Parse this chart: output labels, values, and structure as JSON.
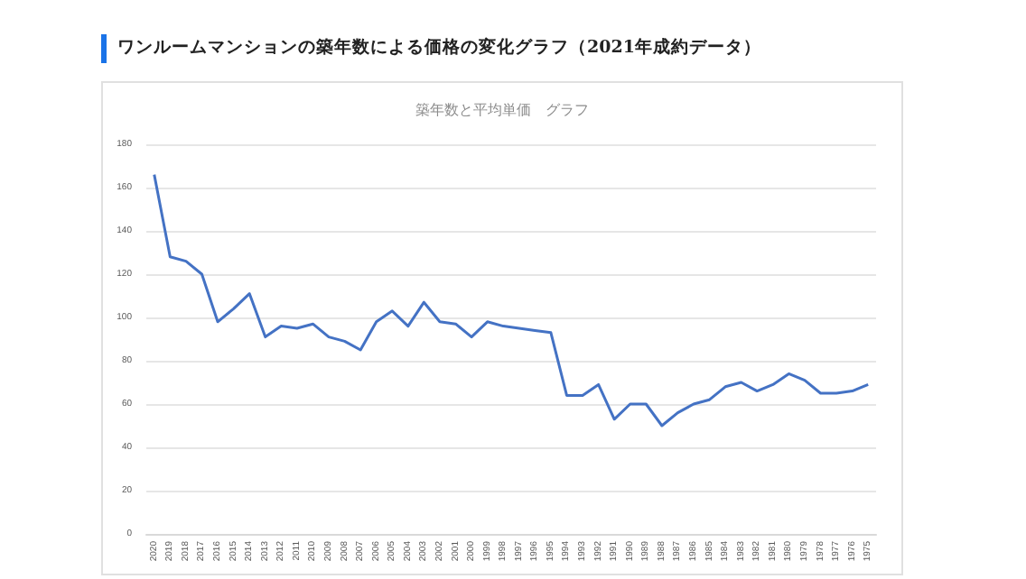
{
  "chart_data": {
    "type": "line",
    "title": "ワンルームマンションの築年数による価格の変化グラフ（2021年成約データ）",
    "subtitle": "築年数と平均単価　グラフ",
    "categories": [
      "2020",
      "2019",
      "2018",
      "2017",
      "2016",
      "2015",
      "2014",
      "2013",
      "2012",
      "2011",
      "2010",
      "2009",
      "2008",
      "2007",
      "2006",
      "2005",
      "2004",
      "2003",
      "2002",
      "2001",
      "2000",
      "1999",
      "1998",
      "1997",
      "1996",
      "1995",
      "1994",
      "1993",
      "1992",
      "1991",
      "1990",
      "1989",
      "1988",
      "1987",
      "1986",
      "1985",
      "1984",
      "1983",
      "1982",
      "1981",
      "1980",
      "1979",
      "1978",
      "1977",
      "1976",
      "1975"
    ],
    "series": [
      {
        "color": "#4472c4",
        "values": [
          166,
          128,
          126,
          120,
          98,
          104,
          111,
          91,
          96,
          95,
          97,
          91,
          89,
          85,
          98,
          103,
          96,
          107,
          98,
          97,
          91,
          98,
          96,
          95,
          94,
          93,
          64,
          64,
          69,
          53,
          60,
          60,
          50,
          56,
          60,
          62,
          68,
          70,
          66,
          69,
          74,
          71,
          65,
          65,
          66,
          69
        ]
      }
    ],
    "ylim": [
      0,
      180
    ],
    "yticks": [
      0,
      20,
      40,
      60,
      80,
      100,
      120,
      140,
      160,
      180
    ],
    "grid": "y",
    "marker": "none",
    "line_style": "solid"
  }
}
